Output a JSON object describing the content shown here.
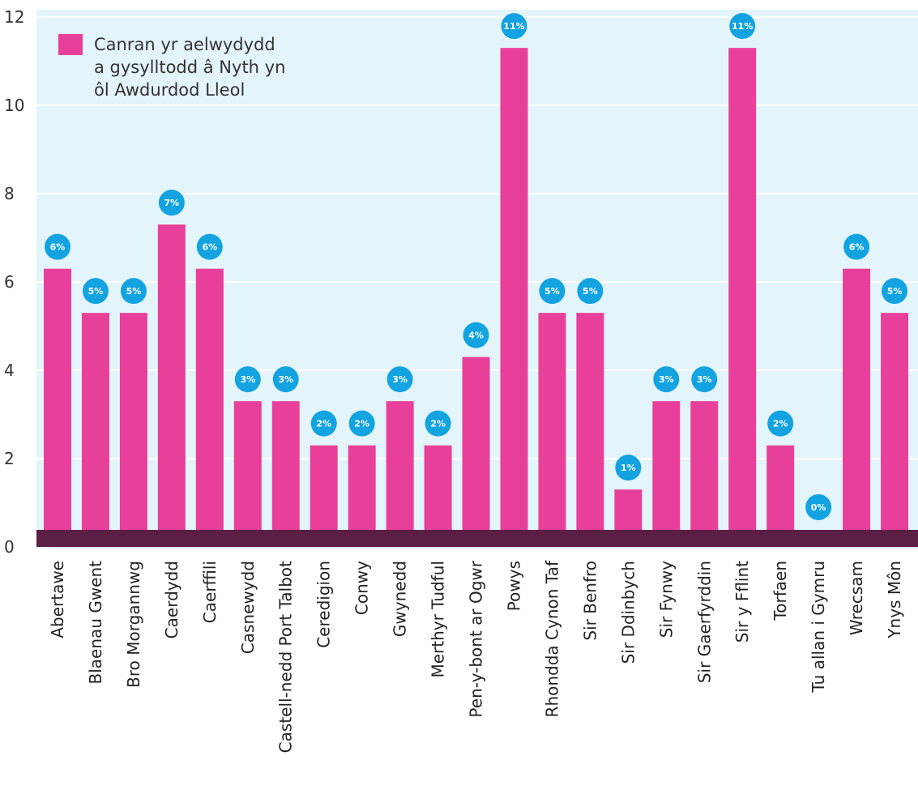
{
  "chart_data": {
    "type": "bar",
    "categories": [
      "Abertawe",
      "Blaenau Gwent",
      "Bro Morgannwg",
      "Caerdydd",
      "Caerffili",
      "Casnewydd",
      "Castell-nedd Port Talbot",
      "Ceredigion",
      "Conwy",
      "Gwynedd",
      "Merthyr Tudful",
      "Pen-y-bont ar Ogwr",
      "Powys",
      "Rhondda Cynon Taf",
      "Sir Benfro",
      "Sir Ddinbych",
      "Sir Fynwy",
      "Sir Gaerfyrddin",
      "Sir y Fflint",
      "Torfaen",
      "Tu allan i Gymru",
      "Wrecsam",
      "Ynys Môn"
    ],
    "values": [
      6,
      5,
      5,
      7,
      6,
      3,
      3,
      2,
      2,
      3,
      2,
      4,
      11,
      5,
      5,
      1,
      3,
      3,
      11,
      2,
      0,
      6,
      5
    ],
    "data_labels": [
      "6%",
      "5%",
      "5%",
      "7%",
      "6%",
      "3%",
      "3%",
      "2%",
      "2%",
      "3%",
      "2%",
      "4%",
      "11%",
      "5%",
      "5%",
      "1%",
      "3%",
      "3%",
      "11%",
      "2%",
      "0%",
      "6%",
      "5%"
    ],
    "series": [
      {
        "name": "Canran yr aelwydydd a gysylltodd â Nyth yn ôl Awdurdod Lleol",
        "values": [
          6,
          5,
          5,
          7,
          6,
          3,
          3,
          2,
          2,
          3,
          2,
          4,
          11,
          5,
          5,
          1,
          3,
          3,
          11,
          2,
          0,
          6,
          5
        ]
      }
    ],
    "legend_lines": [
      "Canran yr aelwydydd",
      "a gysylltodd â Nyth yn",
      "ôl Awdurdod Lleol"
    ],
    "legend_position": "top-left",
    "xlabel": "",
    "ylabel": "",
    "yticks": [
      0,
      2,
      4,
      6,
      8,
      10,
      12
    ],
    "ylim": [
      0,
      12
    ],
    "grid": true,
    "colors": {
      "bar": "#e8409a",
      "baseline": "#5b1f45",
      "plot_bg": "#e3f4fb",
      "grid": "#ffffff",
      "label_badge": "#12a3e0"
    }
  }
}
